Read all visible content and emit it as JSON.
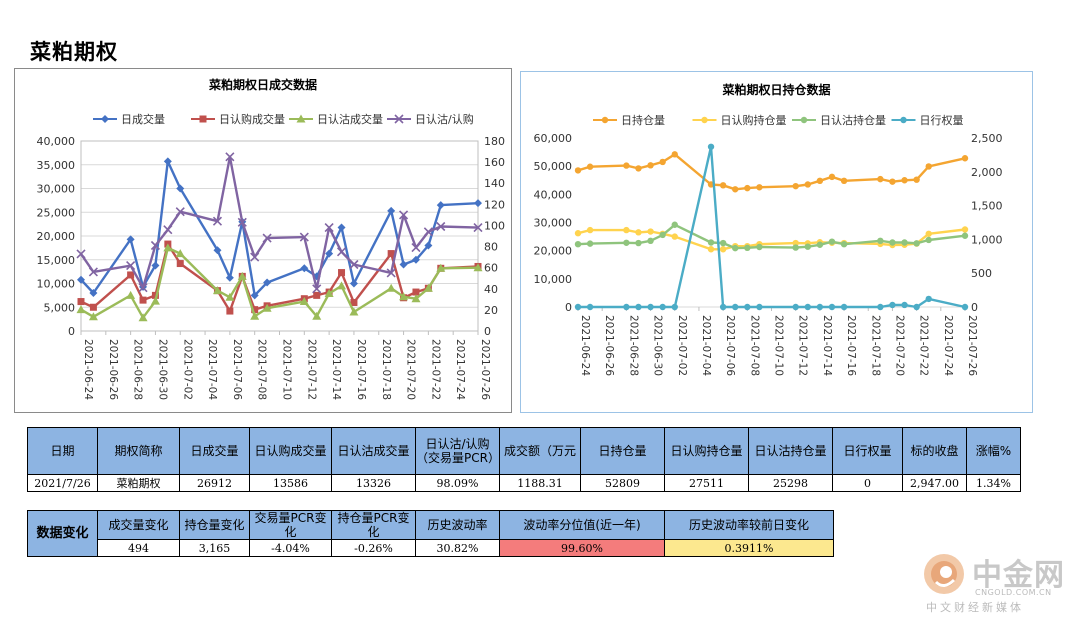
{
  "page_title": "菜粕期权",
  "chart_data": [
    {
      "type": "line",
      "title": "菜粕期权日成交数据",
      "x": [
        "2021-06-24",
        "2021-06-25",
        "2021-06-28",
        "2021-06-29",
        "2021-06-30",
        "2021-07-01",
        "2021-07-02",
        "2021-07-05",
        "2021-07-06",
        "2021-07-07",
        "2021-07-08",
        "2021-07-09",
        "2021-07-12",
        "2021-07-13",
        "2021-07-14",
        "2021-07-15",
        "2021-07-16",
        "2021-07-19",
        "2021-07-20",
        "2021-07-21",
        "2021-07-22",
        "2021-07-23",
        "2021-07-26"
      ],
      "x_tick_labels": [
        "2021-06-24",
        "2021-06-26",
        "2021-06-28",
        "2021-06-30",
        "2021-07-02",
        "2021-07-04",
        "2021-07-06",
        "2021-07-08",
        "2021-07-10",
        "2021-07-12",
        "2021-07-14",
        "2021-07-16",
        "2021-07-18",
        "2021-07-20",
        "2021-07-22",
        "2021-07-24",
        "2021-07-26"
      ],
      "x_range": [
        "2021-06-24",
        "2021-07-26"
      ],
      "y_left": {
        "min": 0,
        "max": 40000,
        "step": 5000,
        "tick_labels": [
          "0",
          "5,000",
          "10,000",
          "15,000",
          "20,000",
          "25,000",
          "30,000",
          "35,000",
          "40,000"
        ]
      },
      "y_right": {
        "min": 0,
        "max": 180,
        "step": 20,
        "tick_labels": [
          "0",
          "20",
          "40",
          "60",
          "80",
          "100",
          "120",
          "140",
          "160",
          "180"
        ]
      },
      "grid": true,
      "legend_position": "top",
      "series": [
        {
          "name": "日成交量",
          "axis": "left",
          "color": "#4472c4",
          "marker": "diamond",
          "values": [
            10800,
            8000,
            19300,
            9300,
            13800,
            35700,
            30000,
            17000,
            11200,
            23000,
            7500,
            10200,
            13200,
            11500,
            16300,
            21800,
            10000,
            25300,
            14000,
            15000,
            18000,
            26500,
            26912
          ]
        },
        {
          "name": "日认购成交量",
          "axis": "left",
          "color": "#c0504d",
          "marker": "square",
          "values": [
            6200,
            5000,
            11800,
            6500,
            7500,
            18300,
            14200,
            8500,
            4200,
            11500,
            4500,
            5300,
            6800,
            7500,
            8200,
            12300,
            6000,
            16300,
            7000,
            8200,
            9000,
            13200,
            13586
          ]
        },
        {
          "name": "日认沽成交量",
          "axis": "left",
          "color": "#9bbb59",
          "marker": "triangle",
          "values": [
            4500,
            3000,
            7500,
            2800,
            6300,
            17500,
            16300,
            8500,
            7100,
            11500,
            3100,
            4800,
            6200,
            3100,
            7900,
            9500,
            4000,
            9000,
            7200,
            6800,
            9000,
            13200,
            13326
          ]
        },
        {
          "name": "日认沽/认购",
          "axis": "right",
          "color": "#8064a2",
          "marker": "x",
          "values": [
            73,
            56,
            62,
            41,
            81,
            96,
            113,
            104,
            165,
            103,
            70,
            88,
            89,
            40,
            98,
            75,
            63,
            55,
            110,
            79,
            94,
            99,
            98
          ]
        }
      ]
    },
    {
      "type": "line",
      "title": "菜粕期权日持仓数据",
      "x": [
        "2021-06-24",
        "2021-06-25",
        "2021-06-28",
        "2021-06-29",
        "2021-06-30",
        "2021-07-01",
        "2021-07-02",
        "2021-07-05",
        "2021-07-06",
        "2021-07-07",
        "2021-07-08",
        "2021-07-09",
        "2021-07-12",
        "2021-07-13",
        "2021-07-14",
        "2021-07-15",
        "2021-07-16",
        "2021-07-19",
        "2021-07-20",
        "2021-07-21",
        "2021-07-22",
        "2021-07-23",
        "2021-07-26"
      ],
      "x_tick_labels": [
        "2021-06-24",
        "2021-06-26",
        "2021-06-28",
        "2021-06-30",
        "2021-07-02",
        "2021-07-04",
        "2021-07-06",
        "2021-07-08",
        "2021-07-10",
        "2021-07-12",
        "2021-07-14",
        "2021-07-16",
        "2021-07-18",
        "2021-07-20",
        "2021-07-22",
        "2021-07-24",
        "2021-07-26"
      ],
      "x_range": [
        "2021-06-24",
        "2021-07-26"
      ],
      "y_left": {
        "min": 0,
        "max": 60000,
        "step": 10000,
        "tick_labels": [
          "0",
          "10,000",
          "20,000",
          "30,000",
          "40,000",
          "50,000",
          "60,000"
        ]
      },
      "y_right": {
        "min": 0,
        "max": 2500,
        "step": 500,
        "tick_labels": [
          "0",
          "500",
          "1,000",
          "1,500",
          "2,000",
          "2,500"
        ]
      },
      "grid": false,
      "legend_position": "top",
      "series": [
        {
          "name": "日持仓量",
          "axis": "left",
          "color": "#f4a531",
          "marker": "circle",
          "values": [
            48500,
            49800,
            50200,
            49200,
            50300,
            51500,
            54200,
            43500,
            43200,
            41800,
            42200,
            42500,
            42900,
            43500,
            44800,
            46200,
            44800,
            45400,
            44500,
            45000,
            45200,
            49900,
            52809
          ]
        },
        {
          "name": "日认购持仓量",
          "axis": "left",
          "color": "#ffd34e",
          "marker": "circle",
          "values": [
            26200,
            27300,
            27300,
            26500,
            26800,
            26000,
            25000,
            20500,
            20500,
            21600,
            21600,
            22300,
            22700,
            22600,
            23000,
            22800,
            22700,
            22400,
            22000,
            22100,
            22500,
            26000,
            27511
          ]
        },
        {
          "name": "日认沽持仓量",
          "axis": "left",
          "color": "#8fc47d",
          "marker": "circle",
          "values": [
            22300,
            22500,
            22800,
            22700,
            23500,
            25600,
            29200,
            22900,
            22700,
            20900,
            21000,
            21300,
            21100,
            21400,
            22100,
            23200,
            22300,
            23500,
            22900,
            22900,
            22600,
            23800,
            25298
          ]
        },
        {
          "name": "日行权量",
          "axis": "right",
          "color": "#4bacc6",
          "marker": "circle",
          "values": [
            0,
            0,
            0,
            0,
            0,
            0,
            0,
            2370,
            0,
            0,
            0,
            0,
            0,
            0,
            0,
            0,
            0,
            0,
            30,
            30,
            0,
            120,
            0
          ]
        }
      ]
    }
  ],
  "main_table": {
    "headers": [
      "日期",
      "期权简称",
      "日成交量",
      "日认购成交量",
      "日认沽成交量",
      "日认沽/认购（交易量PCR）",
      "成交额（万元",
      "日持仓量",
      "日认购持仓量",
      "日认沽持仓量",
      "日行权量",
      "标的收盘",
      "涨幅%"
    ],
    "row": [
      "2021/7/26",
      "菜粕期权",
      "26912",
      "13586",
      "13326",
      "98.09%",
      "1188.31",
      "52809",
      "27511",
      "25298",
      "0",
      "2,947.00",
      "1.34%"
    ]
  },
  "change_table": {
    "row_label": "数据变化",
    "headers": [
      "成交量变化",
      "持仓量变化",
      "交易量PCR变化",
      "持仓量PCR变化",
      "历史波动率",
      "波动率分位值(近一年)",
      "历史波动率较前日变化"
    ],
    "row": [
      "494",
      "3,165",
      "-4.04%",
      "-0.26%",
      "30.82%",
      "99.60%",
      "0.3911%"
    ],
    "highlight_colors": {
      "volatility_percentile": "#f47c7c",
      "volatility_change": "#fce88f"
    }
  },
  "watermark": {
    "name": "中金网",
    "url": "CNGOLD.COM.CN",
    "tagline": "中文财经新媒体"
  }
}
